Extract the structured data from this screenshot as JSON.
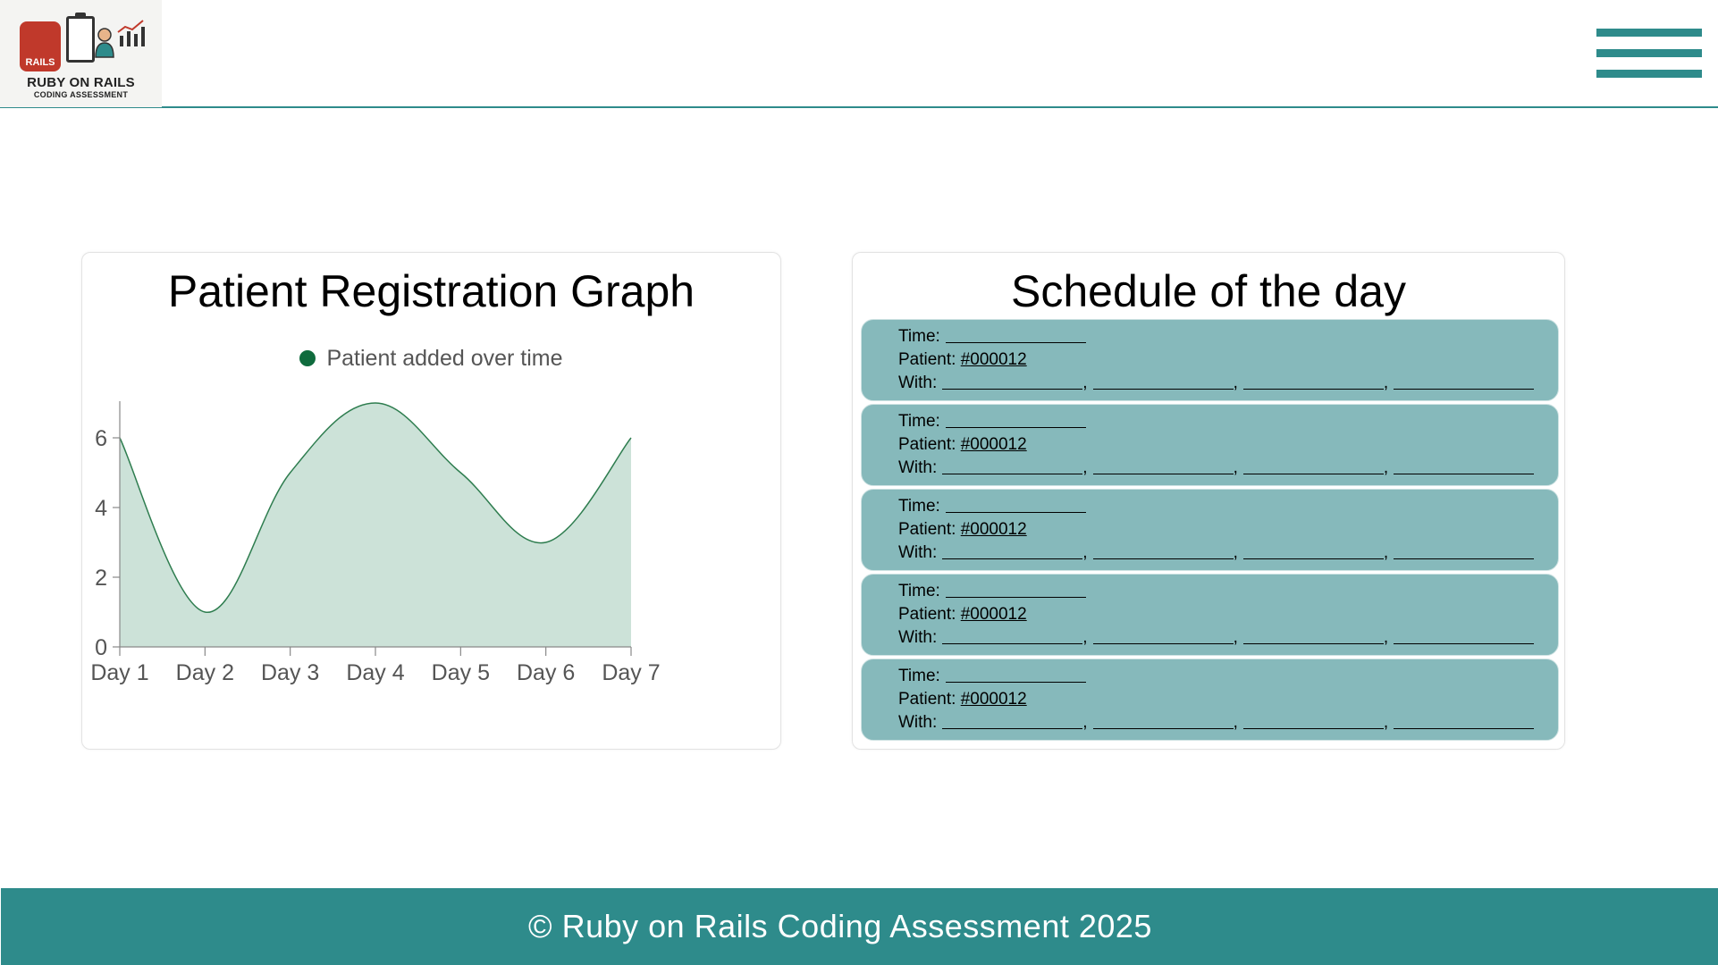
{
  "header": {
    "logo": {
      "badge_text": "RAILS",
      "title": "RUBY ON RAILS",
      "subtitle": "CODING ASSESSMENT"
    },
    "menu_icon": "hamburger-menu-icon"
  },
  "graph": {
    "title": "Patient Registration Graph",
    "legend_label": "Patient added over time"
  },
  "chart_data": {
    "type": "area",
    "title": "Patient Registration Graph",
    "categories": [
      "Day 1",
      "Day 2",
      "Day 3",
      "Day 4",
      "Day 5",
      "Day 6",
      "Day 7"
    ],
    "series": [
      {
        "name": "Patient added over time",
        "values": [
          6,
          1,
          5,
          7,
          5,
          3,
          6
        ]
      }
    ],
    "yticks": [
      0,
      2,
      4,
      6
    ],
    "ylim": [
      0,
      7
    ],
    "xlabel": "",
    "ylabel": "",
    "grid": false,
    "legend_position": "top",
    "colors": {
      "line": "#2e7d4f",
      "fill": "#cce2d8",
      "legend_dot": "#0f6b3d"
    }
  },
  "schedule": {
    "title": "Schedule of the day",
    "time_label": "Time:",
    "patient_label": "Patient:",
    "with_label": "With:",
    "slots": [
      {
        "patient_id": "#000012"
      },
      {
        "patient_id": "#000012"
      },
      {
        "patient_id": "#000012"
      },
      {
        "patient_id": "#000012"
      },
      {
        "patient_id": "#000012"
      }
    ]
  },
  "footer": {
    "text": "© Ruby on Rails Coding Assessment 2025"
  },
  "colors": {
    "accent": "#2e8b8b",
    "slot_bg": "#86b9bb",
    "logo_red": "#c0392b"
  }
}
